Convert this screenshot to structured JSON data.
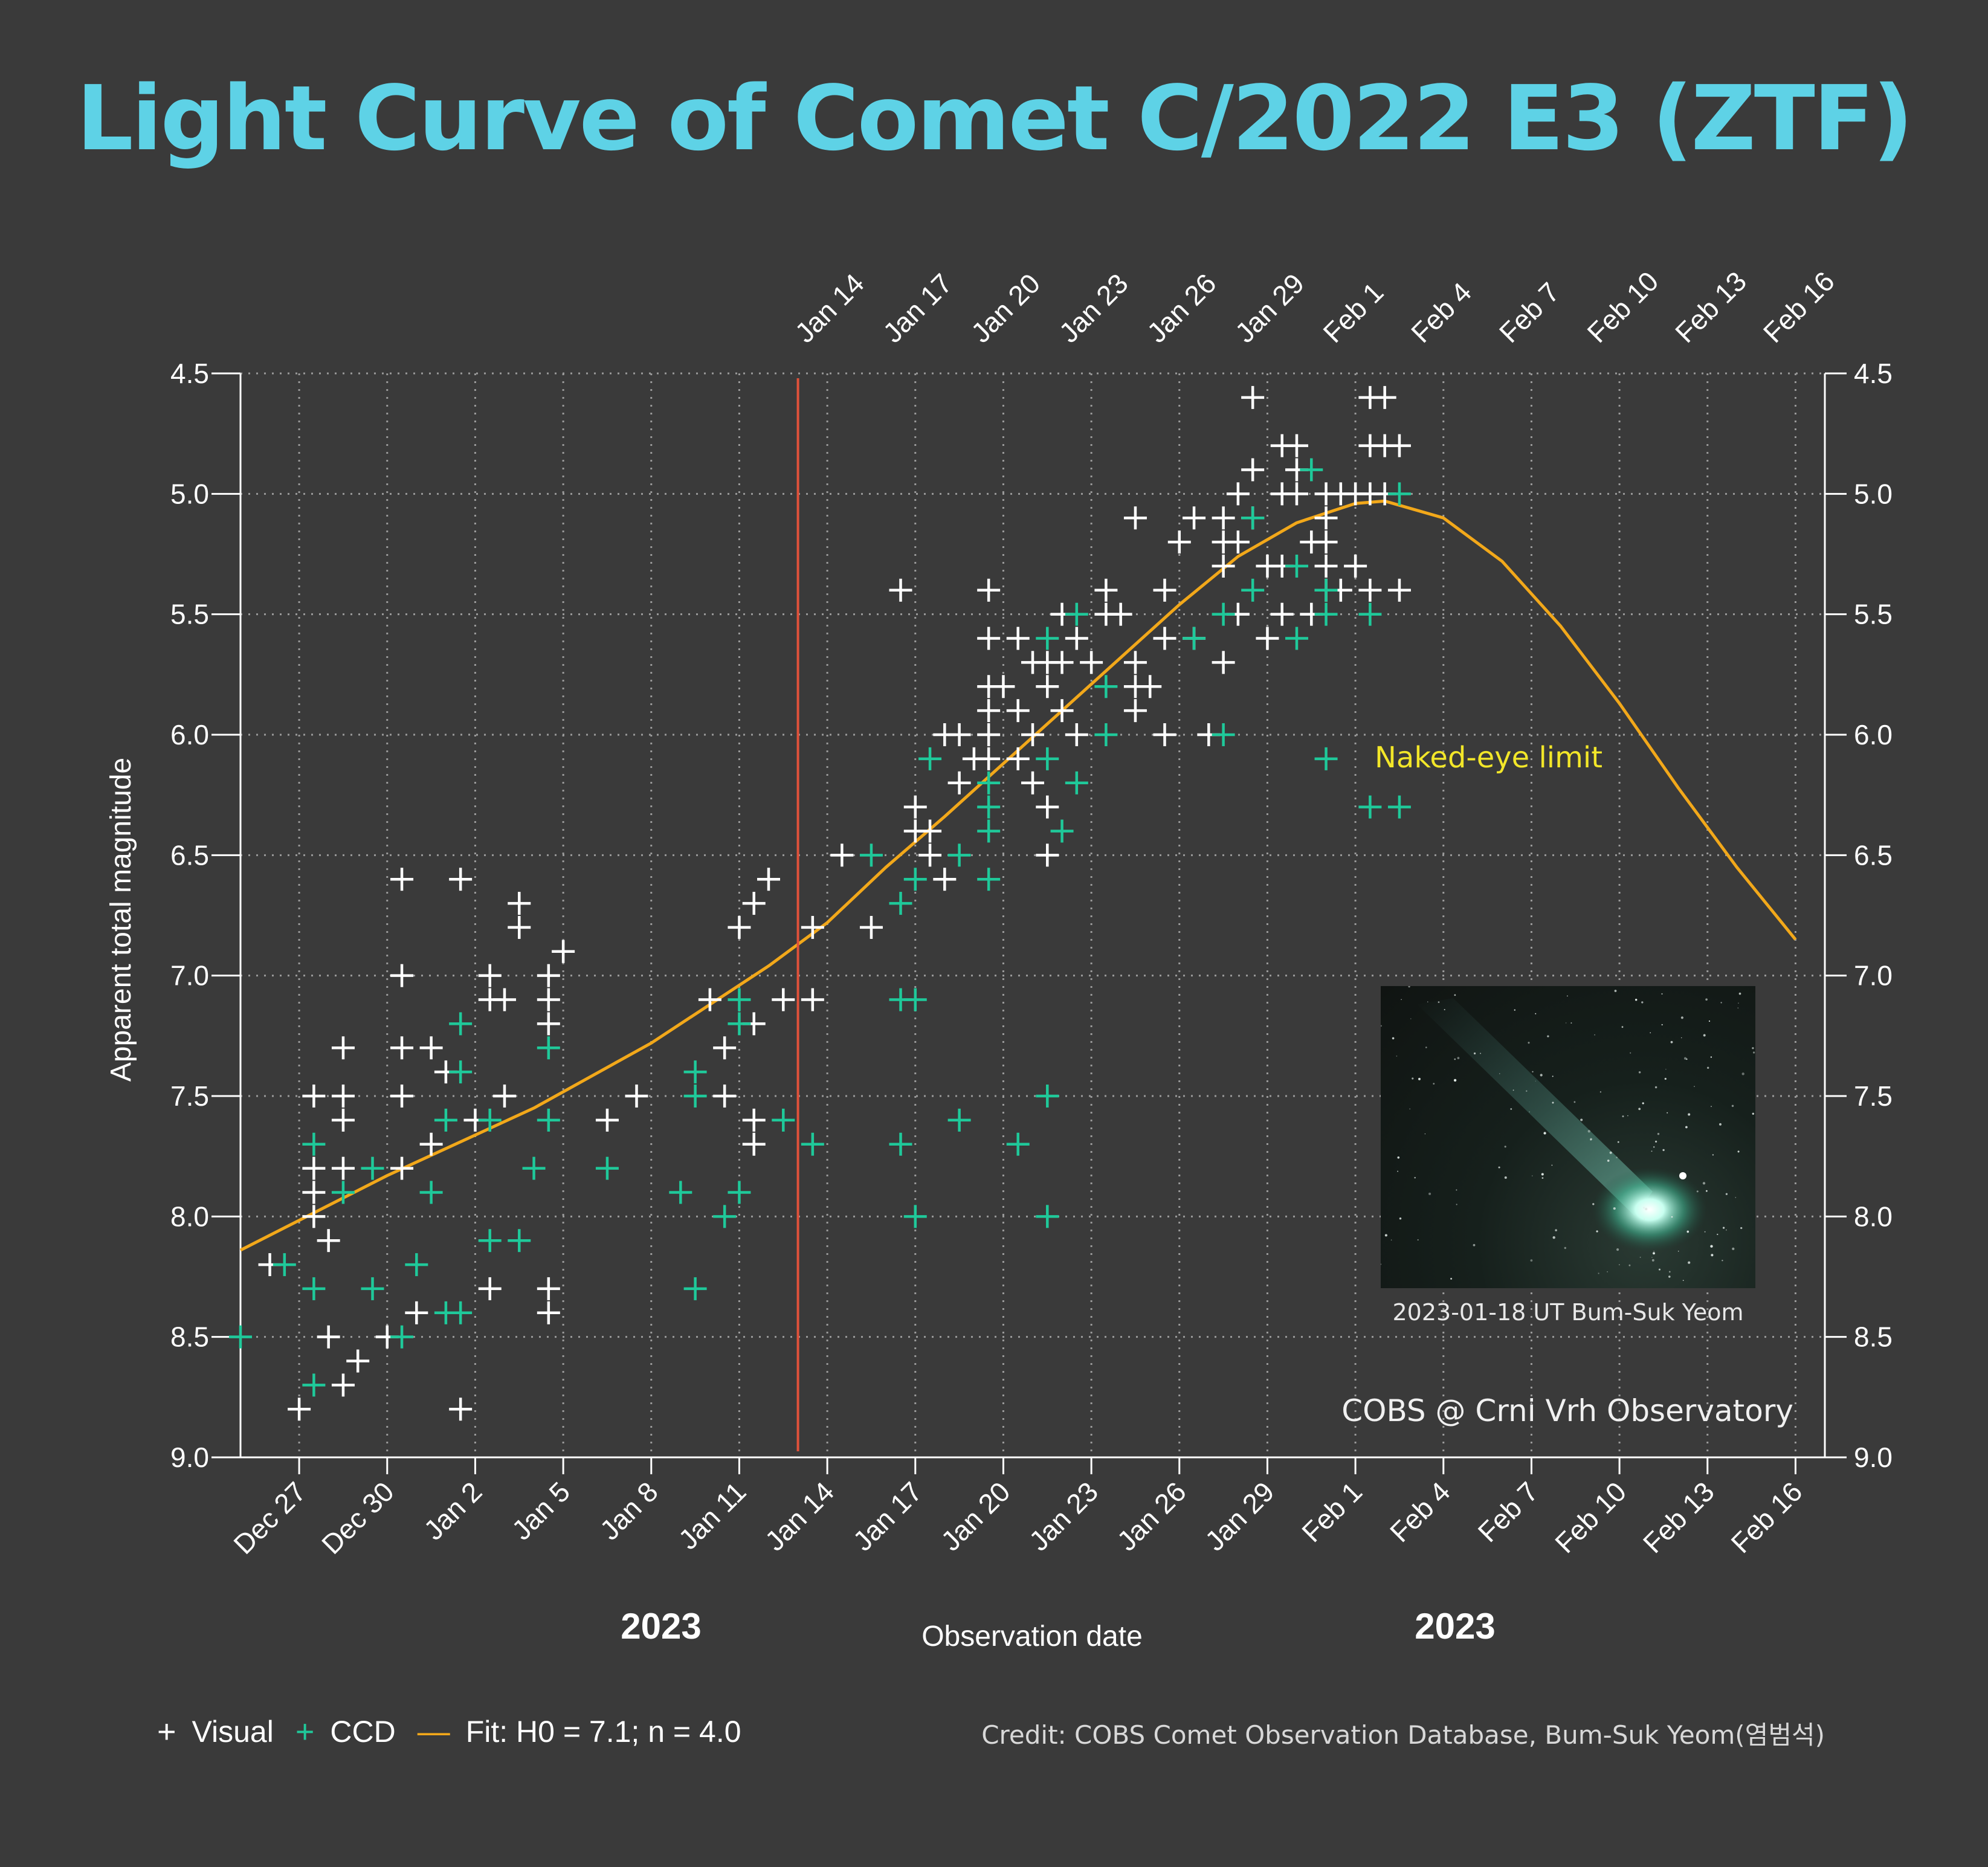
{
  "title": "Light Curve of Comet C/2022 E3 (ZTF)",
  "colors": {
    "background": "#3a3a3a",
    "title": "#5ed2e6",
    "visual": "#ffffff",
    "ccd": "#1fc99a",
    "fit": "#f2a81a",
    "marker_line": "#e0513a",
    "naked_eye": "#f2e629"
  },
  "chart_data": {
    "type": "scatter",
    "title": "Light Curve of Comet C/2022 E3 (ZTF)",
    "xlabel": "Observation date",
    "ylabel": "Apparent total magnitude",
    "year_labels": [
      "2023",
      "2023"
    ],
    "x_tick_labels": [
      "Dec 27",
      "Dec 30",
      "Jan 2",
      "Jan 5",
      "Jan 8",
      "Jan 11",
      "Jan 14",
      "Jan 17",
      "Jan 20",
      "Jan 23",
      "Jan 26",
      "Jan 29",
      "Feb 1",
      "Feb 4",
      "Feb 7",
      "Feb 10",
      "Feb 13",
      "Feb 16"
    ],
    "top_tick_labels": [
      "Jan 14",
      "Jan 17",
      "Jan 20",
      "Jan 23",
      "Jan 26",
      "Jan 29",
      "Feb 1",
      "Feb 4",
      "Feb 7",
      "Feb 10",
      "Feb 13",
      "Feb 16"
    ],
    "y_tick_labels": [
      "4.5",
      "5.0",
      "5.5",
      "6.0",
      "6.5",
      "7.0",
      "7.5",
      "8.0",
      "8.5",
      "9.0"
    ],
    "xlim": [
      "2022-12-25",
      "2023-02-17"
    ],
    "ylim": [
      9.0,
      4.5
    ],
    "y_inverted": true,
    "grid": true,
    "marker_date": "2023-01-13",
    "naked_eye_label": "Naked-eye limit",
    "series": [
      {
        "name": "Visual",
        "marker": "+",
        "points": [
          [
            "2022-12-26",
            8.2
          ],
          [
            "2022-12-27",
            8.8
          ],
          [
            "2022-12-27.5",
            7.5
          ],
          [
            "2022-12-27.5",
            7.8
          ],
          [
            "2022-12-27.5",
            7.9
          ],
          [
            "2022-12-27.5",
            8.0
          ],
          [
            "2022-12-28",
            8.1
          ],
          [
            "2022-12-28",
            8.5
          ],
          [
            "2022-12-28.5",
            7.3
          ],
          [
            "2022-12-28.5",
            7.5
          ],
          [
            "2022-12-28.5",
            7.6
          ],
          [
            "2022-12-28.5",
            7.8
          ],
          [
            "2022-12-28.5",
            8.7
          ],
          [
            "2022-12-29",
            8.6
          ],
          [
            "2022-12-30",
            8.5
          ],
          [
            "2022-12-30.5",
            6.6
          ],
          [
            "2022-12-30.5",
            7.0
          ],
          [
            "2022-12-30.5",
            7.3
          ],
          [
            "2022-12-30.5",
            7.5
          ],
          [
            "2022-12-30.5",
            7.8
          ],
          [
            "2022-12-31",
            8.4
          ],
          [
            "2022-12-31.5",
            7.3
          ],
          [
            "2022-12-31.5",
            7.7
          ],
          [
            "2023-01-01",
            7.4
          ],
          [
            "2023-01-01.5",
            6.6
          ],
          [
            "2023-01-01.5",
            8.8
          ],
          [
            "2023-01-02",
            7.6
          ],
          [
            "2023-01-02.5",
            7.0
          ],
          [
            "2023-01-02.5",
            7.1
          ],
          [
            "2023-01-02.5",
            8.3
          ],
          [
            "2023-01-03",
            7.1
          ],
          [
            "2023-01-03",
            7.5
          ],
          [
            "2023-01-03.5",
            6.7
          ],
          [
            "2023-01-03.5",
            6.8
          ],
          [
            "2023-01-04.5",
            7.0
          ],
          [
            "2023-01-04.5",
            7.1
          ],
          [
            "2023-01-04.5",
            7.2
          ],
          [
            "2023-01-04.5",
            8.3
          ],
          [
            "2023-01-04.5",
            8.4
          ],
          [
            "2023-01-05",
            6.9
          ],
          [
            "2023-01-06.5",
            7.6
          ],
          [
            "2023-01-07.5",
            7.5
          ],
          [
            "2023-01-10",
            7.1
          ],
          [
            "2023-01-10.5",
            7.3
          ],
          [
            "2023-01-10.5",
            7.5
          ],
          [
            "2023-01-11",
            6.8
          ],
          [
            "2023-01-11.5",
            6.7
          ],
          [
            "2023-01-11.5",
            7.2
          ],
          [
            "2023-01-11.5",
            7.6
          ],
          [
            "2023-01-11.5",
            7.7
          ],
          [
            "2023-01-12",
            6.6
          ],
          [
            "2023-01-12.5",
            7.1
          ],
          [
            "2023-01-13.5",
            6.8
          ],
          [
            "2023-01-13.5",
            7.1
          ],
          [
            "2023-01-14.5",
            6.5
          ],
          [
            "2023-01-15.5",
            6.8
          ],
          [
            "2023-01-16.5",
            5.4
          ],
          [
            "2023-01-17",
            6.3
          ],
          [
            "2023-01-17",
            6.4
          ],
          [
            "2023-01-17.5",
            6.4
          ],
          [
            "2023-01-17.5",
            6.5
          ],
          [
            "2023-01-18",
            6.6
          ],
          [
            "2023-01-18",
            6.0
          ],
          [
            "2023-01-18.5",
            6.0
          ],
          [
            "2023-01-18.5",
            6.2
          ],
          [
            "2023-01-19",
            6.1
          ],
          [
            "2023-01-19.5",
            5.6
          ],
          [
            "2023-01-19.5",
            5.8
          ],
          [
            "2023-01-19.5",
            5.9
          ],
          [
            "2023-01-19.5",
            6.0
          ],
          [
            "2023-01-19.5",
            6.1
          ],
          [
            "2023-01-19.5",
            5.4
          ],
          [
            "2023-01-20",
            5.8
          ],
          [
            "2023-01-20.5",
            5.6
          ],
          [
            "2023-01-20.5",
            5.9
          ],
          [
            "2023-01-20.5",
            6.1
          ],
          [
            "2023-01-21",
            5.7
          ],
          [
            "2023-01-21",
            6.0
          ],
          [
            "2023-01-21",
            6.2
          ],
          [
            "2023-01-21.5",
            5.7
          ],
          [
            "2023-01-21.5",
            5.8
          ],
          [
            "2023-01-21.5",
            6.3
          ],
          [
            "2023-01-21.5",
            6.5
          ],
          [
            "2023-01-22",
            5.5
          ],
          [
            "2023-01-22",
            5.7
          ],
          [
            "2023-01-22",
            5.9
          ],
          [
            "2023-01-22.5",
            5.6
          ],
          [
            "2023-01-22.5",
            6.0
          ],
          [
            "2023-01-23",
            5.7
          ],
          [
            "2023-01-23.5",
            5.4
          ],
          [
            "2023-01-23.5",
            5.5
          ],
          [
            "2023-01-24",
            5.5
          ],
          [
            "2023-01-24.5",
            5.1
          ],
          [
            "2023-01-24.5",
            5.7
          ],
          [
            "2023-01-24.5",
            5.8
          ],
          [
            "2023-01-24.5",
            5.9
          ],
          [
            "2023-01-25",
            5.8
          ],
          [
            "2023-01-25.5",
            5.4
          ],
          [
            "2023-01-25.5",
            5.6
          ],
          [
            "2023-01-25.5",
            6.0
          ],
          [
            "2023-01-26",
            5.2
          ],
          [
            "2023-01-26.5",
            5.1
          ],
          [
            "2023-01-26.5",
            5.6
          ],
          [
            "2023-01-27",
            6.0
          ],
          [
            "2023-01-27.5",
            5.2
          ],
          [
            "2023-01-27.5",
            5.1
          ],
          [
            "2023-01-27.5",
            5.7
          ],
          [
            "2023-01-27.5",
            5.3
          ],
          [
            "2023-01-28",
            5.0
          ],
          [
            "2023-01-28",
            5.2
          ],
          [
            "2023-01-28",
            5.5
          ],
          [
            "2023-01-28.5",
            4.6
          ],
          [
            "2023-01-28.5",
            4.9
          ],
          [
            "2023-01-28.5",
            5.1
          ],
          [
            "2023-01-29",
            5.3
          ],
          [
            "2023-01-29",
            5.6
          ],
          [
            "2023-01-29.5",
            4.8
          ],
          [
            "2023-01-29.5",
            5.0
          ],
          [
            "2023-01-29.5",
            5.3
          ],
          [
            "2023-01-29.5",
            5.5
          ],
          [
            "2023-01-30",
            4.8
          ],
          [
            "2023-01-30",
            4.9
          ],
          [
            "2023-01-30",
            5.0
          ],
          [
            "2023-01-30.5",
            5.2
          ],
          [
            "2023-01-30.5",
            5.5
          ],
          [
            "2023-01-31",
            5.0
          ],
          [
            "2023-01-31",
            5.1
          ],
          [
            "2023-01-31",
            5.2
          ],
          [
            "2023-01-31",
            5.3
          ],
          [
            "2023-01-31",
            5.4
          ],
          [
            "2023-01-31.5",
            5.0
          ],
          [
            "2023-01-31.5",
            5.4
          ],
          [
            "2023-02-01",
            5.0
          ],
          [
            "2023-02-01",
            5.3
          ],
          [
            "2023-02-01.5",
            4.6
          ],
          [
            "2023-02-01.5",
            4.8
          ],
          [
            "2023-02-01.5",
            5.0
          ],
          [
            "2023-02-01.5",
            5.4
          ],
          [
            "2023-02-02",
            4.6
          ],
          [
            "2023-02-02",
            4.8
          ],
          [
            "2023-02-02",
            5.0
          ],
          [
            "2023-02-02.5",
            4.8
          ],
          [
            "2023-02-02.5",
            5.4
          ]
        ]
      },
      {
        "name": "CCD",
        "marker": "+",
        "points": [
          [
            "2022-12-25",
            8.5
          ],
          [
            "2022-12-26.5",
            8.2
          ],
          [
            "2022-12-27.5",
            7.7
          ],
          [
            "2022-12-27.5",
            8.3
          ],
          [
            "2022-12-27.5",
            8.7
          ],
          [
            "2022-12-28.5",
            7.9
          ],
          [
            "2022-12-29.5",
            7.8
          ],
          [
            "2022-12-29.5",
            8.3
          ],
          [
            "2022-12-30.5",
            8.5
          ],
          [
            "2022-12-31",
            8.2
          ],
          [
            "2022-12-31.5",
            7.9
          ],
          [
            "2023-01-01",
            7.6
          ],
          [
            "2023-01-01",
            8.4
          ],
          [
            "2023-01-01.5",
            7.2
          ],
          [
            "2023-01-01.5",
            7.4
          ],
          [
            "2023-01-01.5",
            8.4
          ],
          [
            "2023-01-02.5",
            7.6
          ],
          [
            "2023-01-02.5",
            8.1
          ],
          [
            "2023-01-03.5",
            8.1
          ],
          [
            "2023-01-04",
            7.8
          ],
          [
            "2023-01-04.5",
            7.3
          ],
          [
            "2023-01-04.5",
            7.6
          ],
          [
            "2023-01-06.5",
            7.8
          ],
          [
            "2023-01-09",
            7.9
          ],
          [
            "2023-01-09.5",
            7.4
          ],
          [
            "2023-01-09.5",
            7.5
          ],
          [
            "2023-01-09.5",
            8.3
          ],
          [
            "2023-01-10.5",
            8.0
          ],
          [
            "2023-01-11",
            7.1
          ],
          [
            "2023-01-11",
            7.2
          ],
          [
            "2023-01-11",
            7.9
          ],
          [
            "2023-01-12.5",
            7.6
          ],
          [
            "2023-01-13.5",
            7.7
          ],
          [
            "2023-01-15.5",
            6.5
          ],
          [
            "2023-01-16.5",
            6.7
          ],
          [
            "2023-01-16.5",
            7.1
          ],
          [
            "2023-01-16.5",
            7.7
          ],
          [
            "2023-01-17",
            6.6
          ],
          [
            "2023-01-17",
            7.1
          ],
          [
            "2023-01-17",
            8.0
          ],
          [
            "2023-01-17.5",
            6.1
          ],
          [
            "2023-01-18.5",
            6.5
          ],
          [
            "2023-01-18.5",
            7.6
          ],
          [
            "2023-01-19.5",
            6.2
          ],
          [
            "2023-01-19.5",
            6.3
          ],
          [
            "2023-01-19.5",
            6.4
          ],
          [
            "2023-01-19.5",
            6.6
          ],
          [
            "2023-01-20.5",
            7.7
          ],
          [
            "2023-01-21.5",
            5.6
          ],
          [
            "2023-01-21.5",
            6.1
          ],
          [
            "2023-01-21.5",
            7.5
          ],
          [
            "2023-01-21.5",
            8.0
          ],
          [
            "2023-01-22",
            6.4
          ],
          [
            "2023-01-22.5",
            5.5
          ],
          [
            "2023-01-22.5",
            6.2
          ],
          [
            "2023-01-23.5",
            5.8
          ],
          [
            "2023-01-23.5",
            6.0
          ],
          [
            "2023-01-26.5",
            5.6
          ],
          [
            "2023-01-27.5",
            5.5
          ],
          [
            "2023-01-27.5",
            6.0
          ],
          [
            "2023-01-28.5",
            5.1
          ],
          [
            "2023-01-28.5",
            5.4
          ],
          [
            "2023-01-30",
            5.3
          ],
          [
            "2023-01-30",
            5.6
          ],
          [
            "2023-01-30.5",
            4.9
          ],
          [
            "2023-01-31",
            5.4
          ],
          [
            "2023-01-31",
            5.5
          ],
          [
            "2023-01-31",
            6.1
          ],
          [
            "2023-02-01.5",
            5.5
          ],
          [
            "2023-02-01.5",
            6.3
          ],
          [
            "2023-02-02.5",
            5.0
          ],
          [
            "2023-02-02.5",
            6.3
          ]
        ]
      },
      {
        "name": "Fit: H0 = 7.1; n = 4.0",
        "type": "line",
        "points": [
          [
            "2022-12-25",
            8.14
          ],
          [
            "2022-12-30",
            7.83
          ],
          [
            "2023-01-04",
            7.55
          ],
          [
            "2023-01-08",
            7.28
          ],
          [
            "2023-01-12",
            6.96
          ],
          [
            "2023-01-14",
            6.78
          ],
          [
            "2023-01-16",
            6.55
          ],
          [
            "2023-01-18",
            6.34
          ],
          [
            "2023-01-20",
            6.12
          ],
          [
            "2023-01-22",
            5.9
          ],
          [
            "2023-01-24",
            5.68
          ],
          [
            "2023-01-26",
            5.46
          ],
          [
            "2023-01-28",
            5.26
          ],
          [
            "2023-01-30",
            5.12
          ],
          [
            "2023-02-01",
            5.04
          ],
          [
            "2023-02-02",
            5.03
          ],
          [
            "2023-02-04",
            5.1
          ],
          [
            "2023-02-06",
            5.28
          ],
          [
            "2023-02-08",
            5.55
          ],
          [
            "2023-02-10",
            5.87
          ],
          [
            "2023-02-12",
            6.22
          ],
          [
            "2023-02-14",
            6.55
          ],
          [
            "2023-02-16",
            6.85
          ]
        ]
      }
    ]
  },
  "photo": {
    "caption": "2023-01-18 UT  Bum-Suk Yeom"
  },
  "source_label": "COBS @ Crni Vrh Observatory",
  "legend": {
    "visual_symbol": "+",
    "visual_label": "Visual",
    "ccd_symbol": "+",
    "ccd_label": "CCD",
    "fit_symbol": "—",
    "fit_label": "Fit: H0 = 7.1; n = 4.0"
  },
  "credit": "Credit: COBS Comet Observation Database, Bum-Suk Yeom(염범석)"
}
